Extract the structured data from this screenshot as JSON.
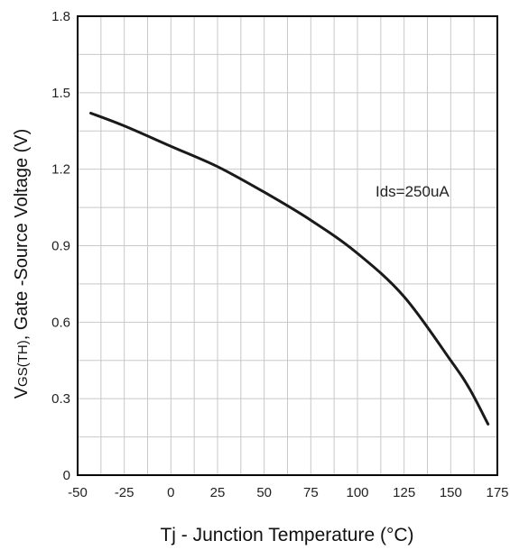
{
  "chart_data": {
    "type": "line",
    "title": "",
    "xlabel": "Tj - Junction Temperature (°C)",
    "ylabel": {
      "prefix": "V",
      "subscript": "GS(TH)",
      "suffix": ", Gate -Source Voltage (V)"
    },
    "xlim": [
      -50,
      175
    ],
    "ylim": [
      0,
      1.8
    ],
    "x_ticks": [
      -50,
      -25,
      0,
      25,
      50,
      75,
      100,
      125,
      150,
      175
    ],
    "x_tick_labels": [
      "-50",
      "-25",
      "0",
      "25",
      "50",
      "75",
      "100",
      "125",
      "150",
      "175"
    ],
    "y_ticks": [
      0,
      0.3,
      0.6,
      0.9,
      1.2,
      1.5,
      1.8
    ],
    "y_tick_labels": [
      "0",
      "0.3",
      "0.6",
      "0.9",
      "1.2",
      "1.5",
      "1.8"
    ],
    "grid": true,
    "annotation": "Ids=250uA",
    "line_color": "#1a1a1a",
    "grid_color": "#c8c8c8",
    "series": [
      {
        "x": [
          -43,
          -25,
          0,
          25,
          50,
          75,
          100,
          125,
          150,
          160,
          170
        ],
        "y": [
          1.42,
          1.37,
          1.29,
          1.21,
          1.11,
          1.0,
          0.87,
          0.7,
          0.45,
          0.34,
          0.2
        ]
      }
    ]
  }
}
